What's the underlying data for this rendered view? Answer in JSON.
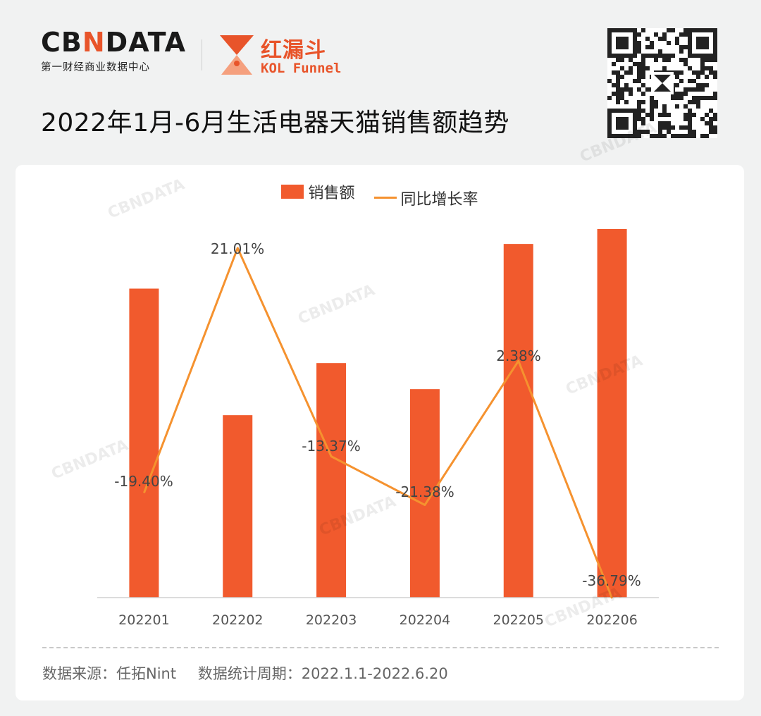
{
  "brand": {
    "cbn_logo": "CBNDATA",
    "cbn_sub": "第一财经商业数据中心",
    "funnel_cn": "红漏斗",
    "funnel_en": "KOL Funnel",
    "accent": "#e8542a"
  },
  "title": "2022年1月-6月生活电器天猫销售额趋势",
  "watermark": "CBNDATA",
  "chart_data": {
    "type": "bar+line",
    "categories": [
      "202201",
      "202202",
      "202203",
      "202204",
      "202205",
      "202206"
    ],
    "series": [
      {
        "name": "销售额",
        "type": "bar",
        "color": "#f15a2d",
        "values": [
          0.83,
          0.49,
          0.63,
          0.56,
          0.95,
          0.99
        ],
        "unit": "relative (no axis printed)"
      },
      {
        "name": "同比增长率",
        "type": "line",
        "color": "#f5922f",
        "values": [
          -19.4,
          21.01,
          -13.37,
          -21.38,
          2.38,
          -36.79
        ],
        "labels": [
          "-19.40%",
          "21.01%",
          "-13.37%",
          "-21.38%",
          "2.38%",
          "-36.79%"
        ]
      }
    ],
    "legend": "top-center",
    "grid": false
  },
  "footer": {
    "source": "数据来源：任拓Nint",
    "period": "数据统计周期：2022.1.1-2022.6.20"
  }
}
